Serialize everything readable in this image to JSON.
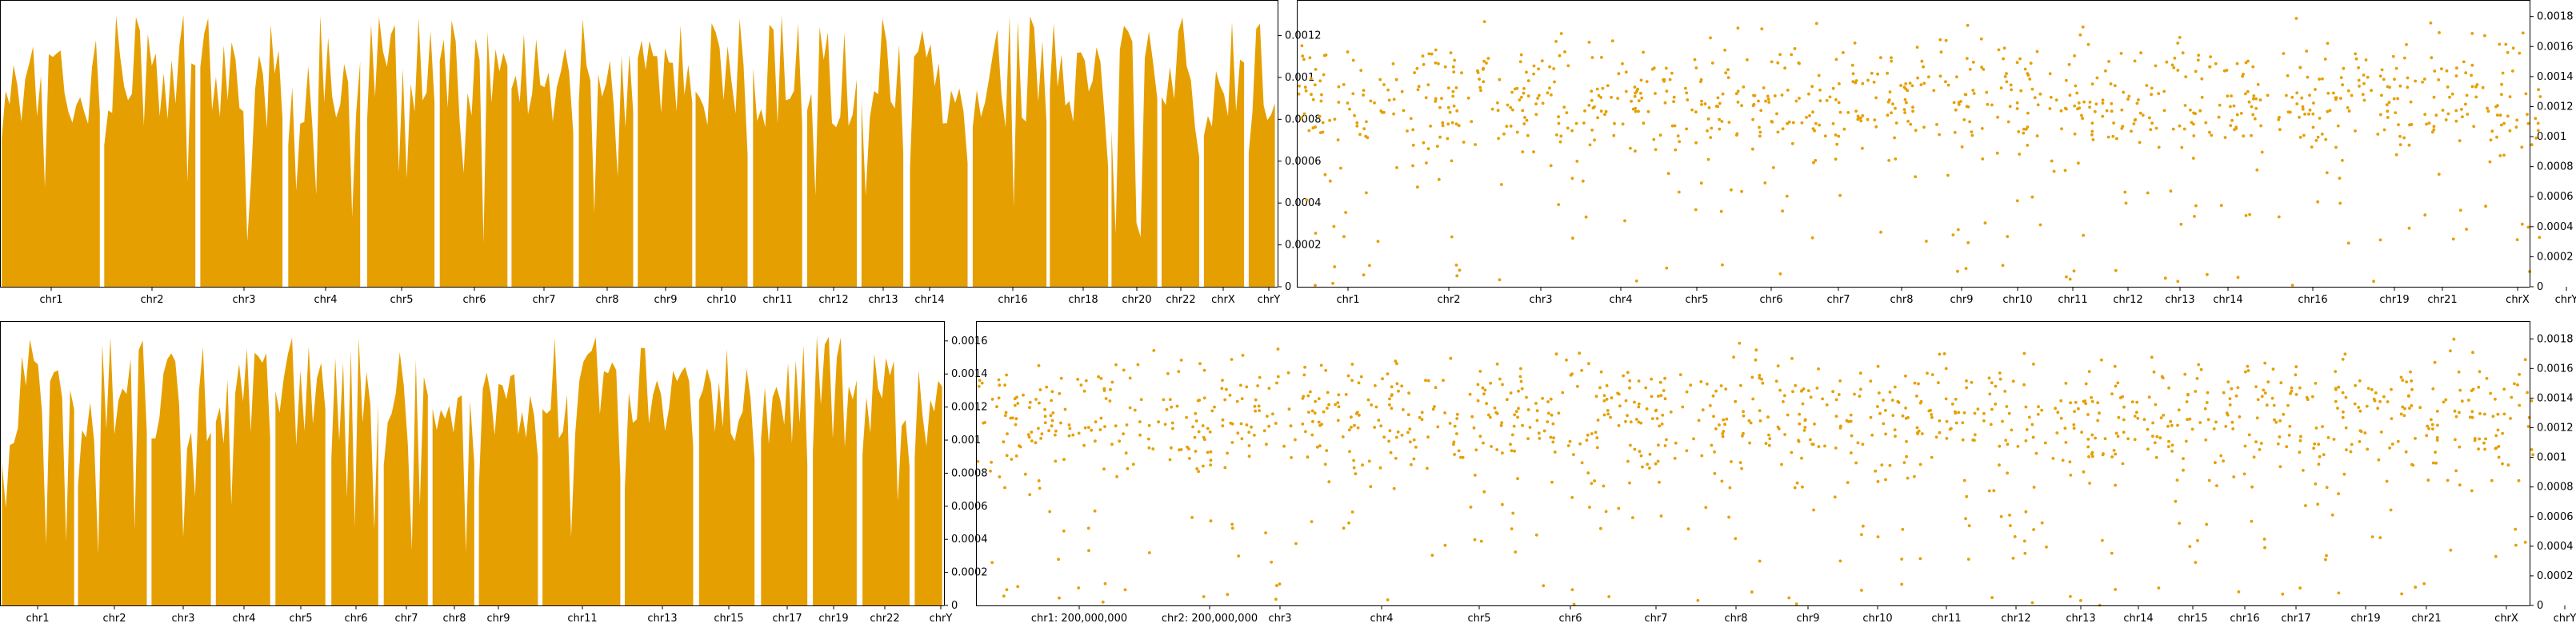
{
  "figure": {
    "background": "#ffffff",
    "series_color": "#E69F00",
    "axis_color": "#000000"
  },
  "chart_data": [
    {
      "id": "p1",
      "type": "area",
      "title": "",
      "xlabel": "",
      "ylabel": "",
      "y_axis_side": "right",
      "ylim": [
        0,
        0.00137
      ],
      "yticks": [
        0,
        0.0002,
        0.0004,
        0.0006,
        0.0008,
        0.001,
        0.0012
      ],
      "yticklabels": [
        "0",
        "0.0002",
        "0.0004",
        "0.0006",
        "0.0008",
        "0.001",
        "0.0012"
      ],
      "chromosomes": [
        "chr1",
        "chr2",
        "chr3",
        "chr4",
        "chr5",
        "chr6",
        "chr7",
        "chr8",
        "chr9",
        "chr10",
        "chr11",
        "chr12",
        "chr13",
        "chr14",
        "chr16",
        "chr18",
        "chr20",
        "chr22",
        "chrX",
        "chrY"
      ],
      "xtick_labels": [
        "chr1",
        "chr2",
        "chr3",
        "chr4",
        "chr5",
        "chr6",
        "chr7",
        "chr8",
        "chr9",
        "chr10",
        "chr11",
        "chr12",
        "chr13",
        "chr14",
        "chr16",
        "chr18",
        "chr20",
        "chr22",
        "chrX",
        "chrY"
      ],
      "grid": false,
      "legend": "none"
    },
    {
      "id": "p2",
      "type": "scatter",
      "title": "",
      "xlabel": "",
      "ylabel": "",
      "y_axis_side": "right",
      "ylim": [
        0,
        0.00191
      ],
      "yticks": [
        0,
        0.0002,
        0.0004,
        0.0006,
        0.0008,
        0.001,
        0.0012,
        0.0014,
        0.0016,
        0.0018
      ],
      "yticklabels": [
        "0",
        "0.0002",
        "0.0004",
        "0.0006",
        "0.0008",
        "0.001",
        "0.0012",
        "0.0014",
        "0.0016",
        "0.0018"
      ],
      "chromosomes": [
        "chr1",
        "chr2",
        "chr3",
        "chr4",
        "chr5",
        "chr6",
        "chr7",
        "chr8",
        "chr9",
        "chr10",
        "chr11",
        "chr12",
        "chr13",
        "chr14",
        "chr16",
        "chr19",
        "chr21",
        "chrX",
        "chrY"
      ],
      "xtick_labels": [
        "chr1",
        "chr2",
        "chr3",
        "chr4",
        "chr5",
        "chr6",
        "chr7",
        "chr8",
        "chr9",
        "chr10",
        "chr11",
        "chr12",
        "chr13",
        "chr14",
        "chr16",
        "chr19",
        "chr21",
        "chrX",
        "chrY"
      ],
      "grid": false,
      "legend": "none"
    },
    {
      "id": "p3",
      "type": "area",
      "title": "",
      "xlabel": "",
      "ylabel": "",
      "y_axis_side": "right",
      "ylim": [
        0,
        0.00172
      ],
      "yticks": [
        0,
        0.0002,
        0.0004,
        0.0006,
        0.0008,
        0.001,
        0.0012,
        0.0014,
        0.0016
      ],
      "yticklabels": [
        "0",
        "0.0002",
        "0.0004",
        "0.0006",
        "0.0008",
        "0.001",
        "0.0012",
        "0.0014",
        "0.0016"
      ],
      "chromosomes": [
        "chr1",
        "chr2",
        "chr3",
        "chr4",
        "chr5",
        "chr6",
        "chr7",
        "chr8",
        "chr9",
        "chr11",
        "chr13",
        "chr15",
        "chr17",
        "chr19",
        "chr22",
        "chrY"
      ],
      "xtick_labels": [
        "chr1",
        "chr2",
        "chr3",
        "chr4",
        "chr5",
        "chr6",
        "chr7",
        "chr8",
        "chr9",
        "chr11",
        "chr13",
        "chr15",
        "chr17",
        "chr19",
        "chr22",
        "chrY"
      ],
      "grid": false,
      "legend": "none"
    },
    {
      "id": "p4",
      "type": "scatter",
      "title": "",
      "xlabel": "",
      "ylabel": "",
      "y_axis_side": "right",
      "ylim": [
        0,
        0.00192
      ],
      "yticks": [
        0,
        0.0002,
        0.0004,
        0.0006,
        0.0008,
        0.001,
        0.0012,
        0.0014,
        0.0016,
        0.0018
      ],
      "yticklabels": [
        "0",
        "0.0002",
        "0.0004",
        "0.0006",
        "0.0008",
        "0.001",
        "0.0012",
        "0.0014",
        "0.0016",
        "0.0018"
      ],
      "chromosomes": [
        "chr1",
        "chr2",
        "chr3",
        "chr4",
        "chr5",
        "chr6",
        "chr7",
        "chr8",
        "chr9",
        "chr10",
        "chr11",
        "chr12",
        "chr13",
        "chr14",
        "chr15",
        "chr16",
        "chr17",
        "chr19",
        "chr21",
        "chrX",
        "chrY"
      ],
      "xtick_labels": [
        "chr1: 200,000,000",
        "chr2: 200,000,000",
        "chr3",
        "chr4",
        "chr5",
        "chr6",
        "chr7",
        "chr8",
        "chr9",
        "chr10",
        "chr11",
        "chr12",
        "chr13",
        "chr14",
        "chr15",
        "chr16",
        "chr17",
        "chr19",
        "chr21",
        "chrX",
        "chrY"
      ],
      "grid": false,
      "legend": "none"
    }
  ]
}
